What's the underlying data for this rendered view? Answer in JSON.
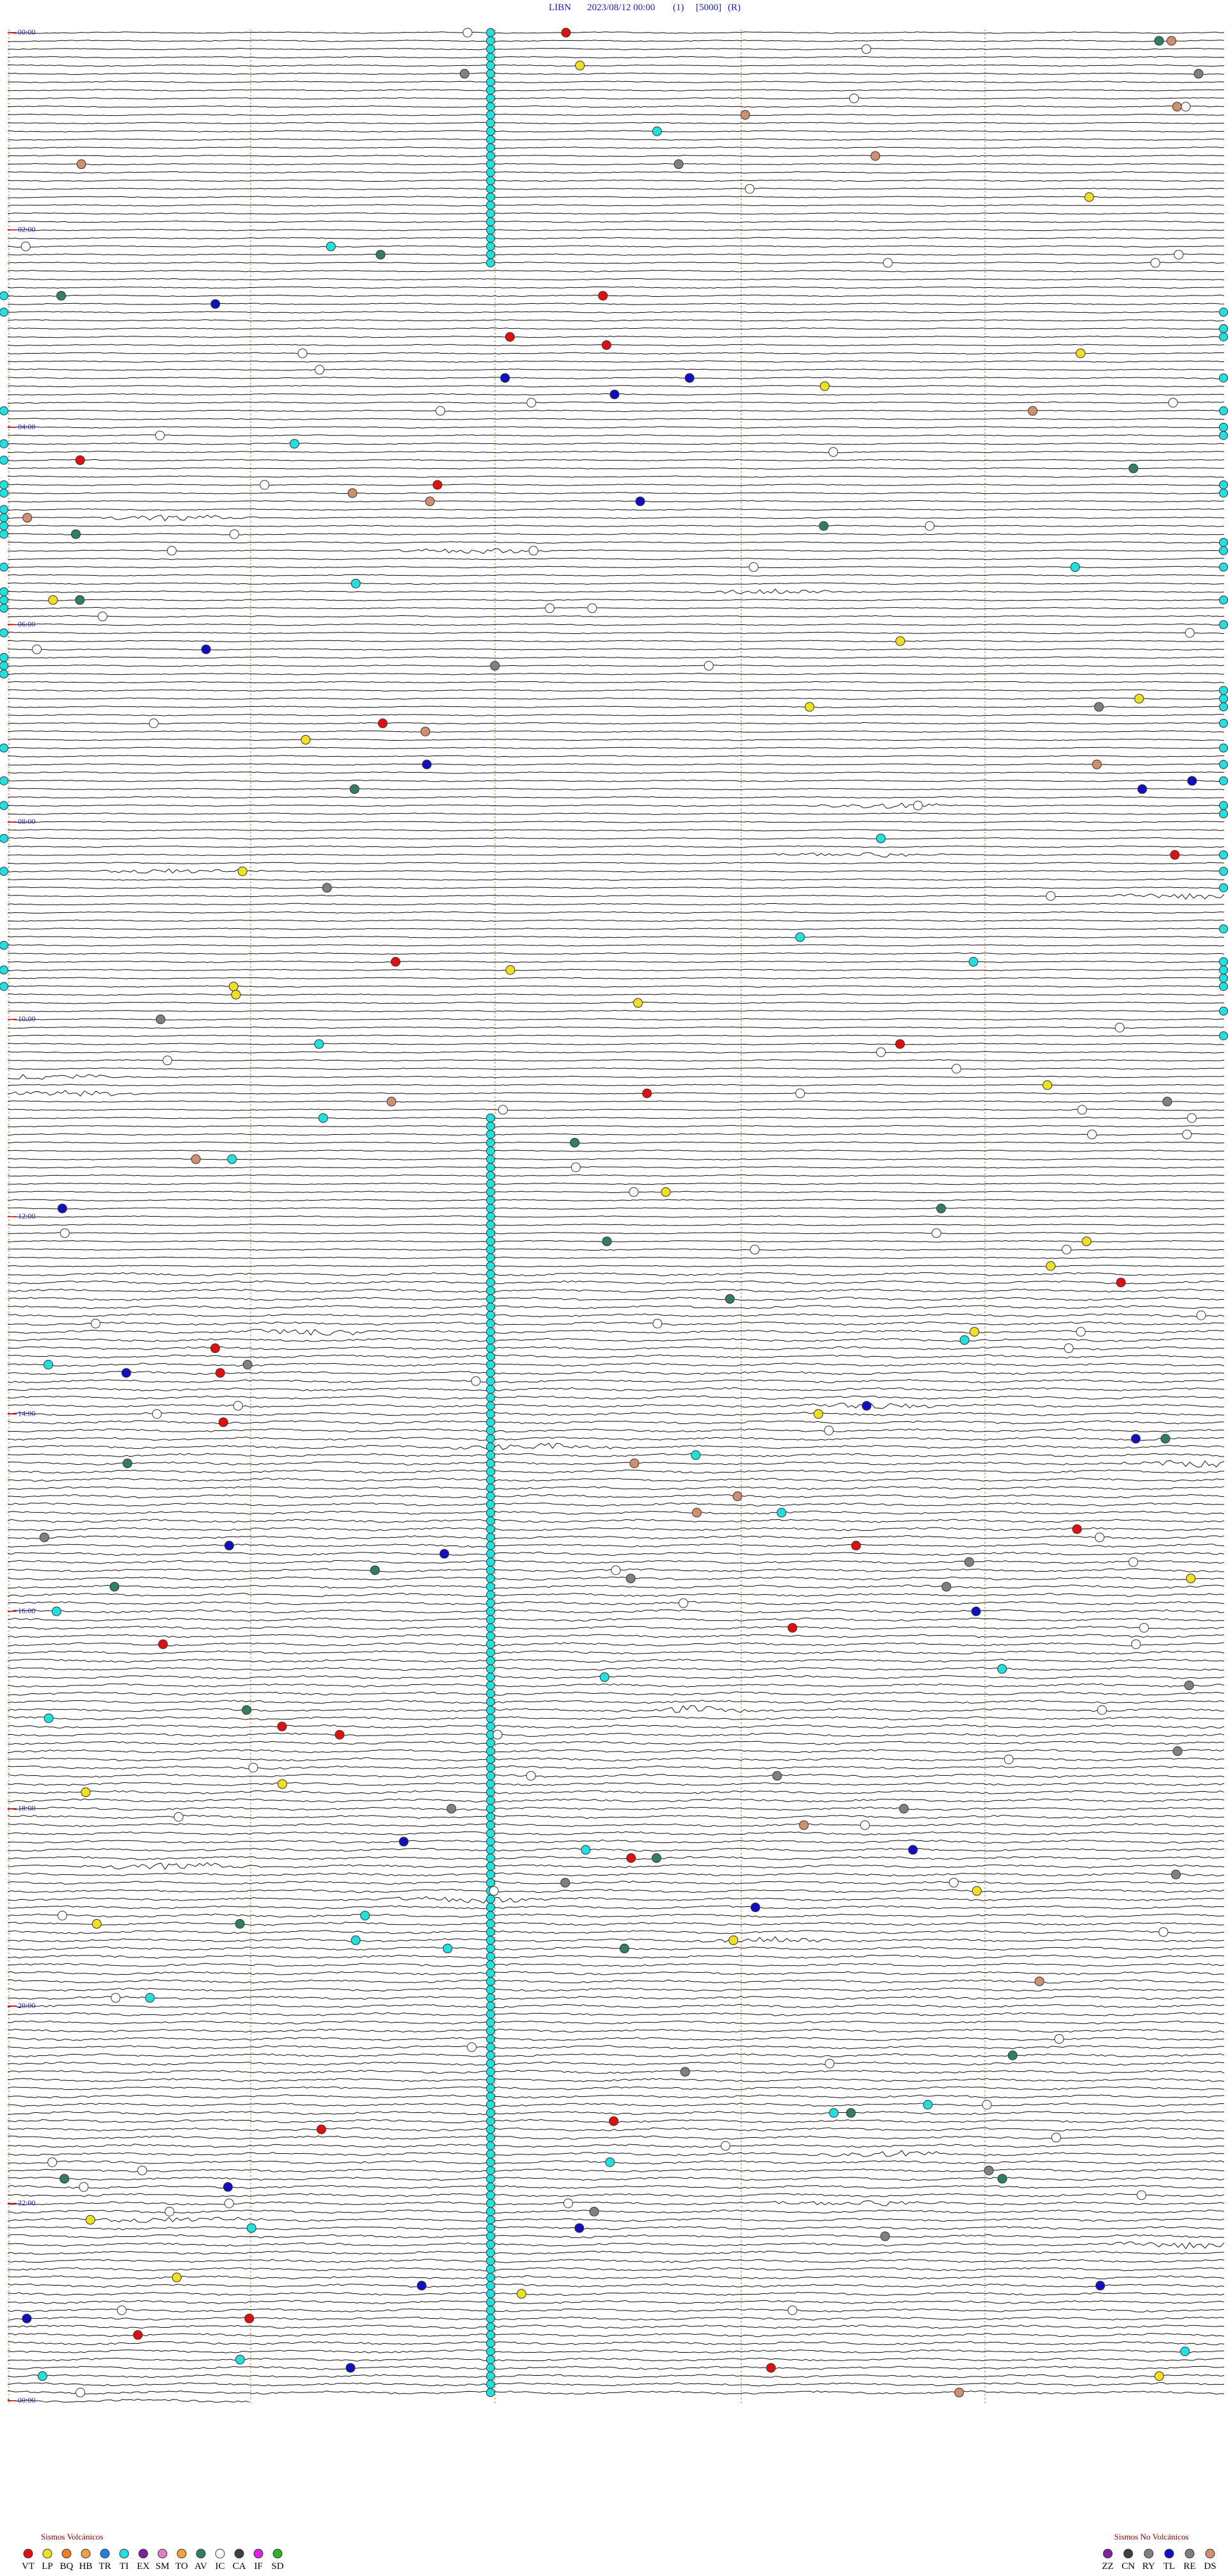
{
  "header": {
    "station": "LIBN",
    "datetime": "2023/08/12 00:00",
    "channel": "(1)",
    "scale": "[5000]",
    "mode": "(R)"
  },
  "time_labels": [
    "00:00",
    "02:00",
    "04:00",
    "06:00",
    "08:00",
    "10:00",
    "12:00",
    "14:00",
    "16:00",
    "18:00",
    "20:00",
    "22:00",
    "00:00"
  ],
  "legend_volcanic": {
    "title": "Sismos Volcánicos",
    "codes": [
      "VT",
      "LP",
      "BQ",
      "HB",
      "TR",
      "TI",
      "EX",
      "SM",
      "TO",
      "AV",
      "IC",
      "CA",
      "IF",
      "SD"
    ]
  },
  "legend_non_volcanic": {
    "title": "Sismos No Volcánicos",
    "codes": [
      "ZZ",
      "CN",
      "RY",
      "TL",
      "RE",
      "DS"
    ]
  }
}
